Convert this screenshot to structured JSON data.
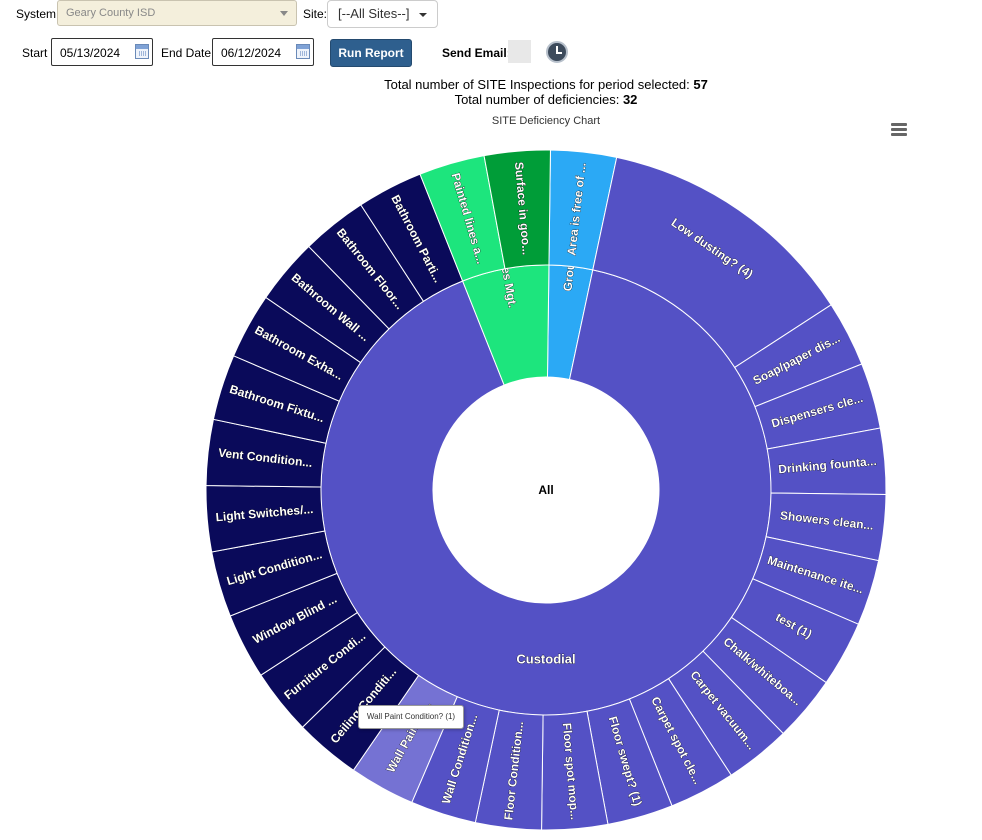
{
  "filters": {
    "system_label": "System:",
    "system_value": "Geary County ISD",
    "site_label": "Site:",
    "site_value": "[--All Sites--]",
    "start_label": "Start",
    "start_value": "05/13/2024",
    "end_label": "End Date",
    "end_value": "06/12/2024",
    "run_label": "Run Report",
    "email_label": "Send Email:"
  },
  "summary": {
    "inspections_text": "Total number of SITE Inspections for period selected:",
    "inspections_count": "57",
    "deficiencies_text": "Total number of deficiencies:",
    "deficiencies_count": "32"
  },
  "tooltip": "Wall Paint Condition? (1)",
  "chart_data": {
    "type": "sunburst",
    "title": "SITE Deficiency Chart",
    "center_label": "All",
    "colors": {
      "custodial": "#5451c5",
      "custodial_hover": "#7572d3",
      "facilities": "#1de57d",
      "facilities_child_a": "#1de57d",
      "facilities_child_b": "#009d38",
      "grounds": "#2ba9f5",
      "navy": "#0a0a5a"
    },
    "inner": [
      {
        "name": "Grounds",
        "value": 1,
        "color": "grounds"
      },
      {
        "name": "Custodial",
        "value": 29,
        "color": "custodial"
      },
      {
        "name": "Facilities Mgt.",
        "value": 2,
        "color": "facilities"
      }
    ],
    "outer": [
      {
        "label": "Area is free of ...",
        "value": 1,
        "color": "grounds"
      },
      {
        "label": "Low dusting? (4)",
        "value": 4,
        "color": "custodial"
      },
      {
        "label": "Soap/paper dis...",
        "value": 1,
        "color": "custodial"
      },
      {
        "label": "Dispensers cle...",
        "value": 1,
        "color": "custodial"
      },
      {
        "label": "Drinking founta...",
        "value": 1,
        "color": "custodial"
      },
      {
        "label": "Showers clean...",
        "value": 1,
        "color": "custodial"
      },
      {
        "label": "Maintenance ite...",
        "value": 1,
        "color": "custodial"
      },
      {
        "label": "test (1)",
        "value": 1,
        "color": "custodial"
      },
      {
        "label": "Chalk/whiteboa...",
        "value": 1,
        "color": "custodial"
      },
      {
        "label": "Carpet vacuum...",
        "value": 1,
        "color": "custodial"
      },
      {
        "label": "Carpet spot cle...",
        "value": 1,
        "color": "custodial"
      },
      {
        "label": "Floor swept? (1)",
        "value": 1,
        "color": "custodial"
      },
      {
        "label": "Floor spot mop...",
        "value": 1,
        "color": "custodial"
      },
      {
        "label": "Floor Condition...",
        "value": 1,
        "color": "custodial"
      },
      {
        "label": "Wall Condition...",
        "value": 1,
        "color": "custodial"
      },
      {
        "label": "Wall Paint C...",
        "value": 1,
        "color": "custodial_hover"
      },
      {
        "label": "Ceiling Conditi...",
        "value": 1,
        "color": "navy"
      },
      {
        "label": "Furniture Condi...",
        "value": 1,
        "color": "navy"
      },
      {
        "label": "Window Blind ...",
        "value": 1,
        "color": "navy"
      },
      {
        "label": "Light Condition...",
        "value": 1,
        "color": "navy"
      },
      {
        "label": "Light Switches/...",
        "value": 1,
        "color": "navy"
      },
      {
        "label": "Vent Condition...",
        "value": 1,
        "color": "navy"
      },
      {
        "label": "Bathroom Fixtu...",
        "value": 1,
        "color": "navy"
      },
      {
        "label": "Bathroom Exha...",
        "value": 1,
        "color": "navy"
      },
      {
        "label": "Bathroom Wall ...",
        "value": 1,
        "color": "navy"
      },
      {
        "label": "Bathroom Floor...",
        "value": 1,
        "color": "navy"
      },
      {
        "label": "Bathroom Parti...",
        "value": 1,
        "color": "navy"
      },
      {
        "label": "Painted lines a...",
        "value": 1,
        "color": "facilities_child_a"
      },
      {
        "label": "Surface in goo...",
        "value": 1,
        "color": "facilities_child_b"
      }
    ]
  }
}
